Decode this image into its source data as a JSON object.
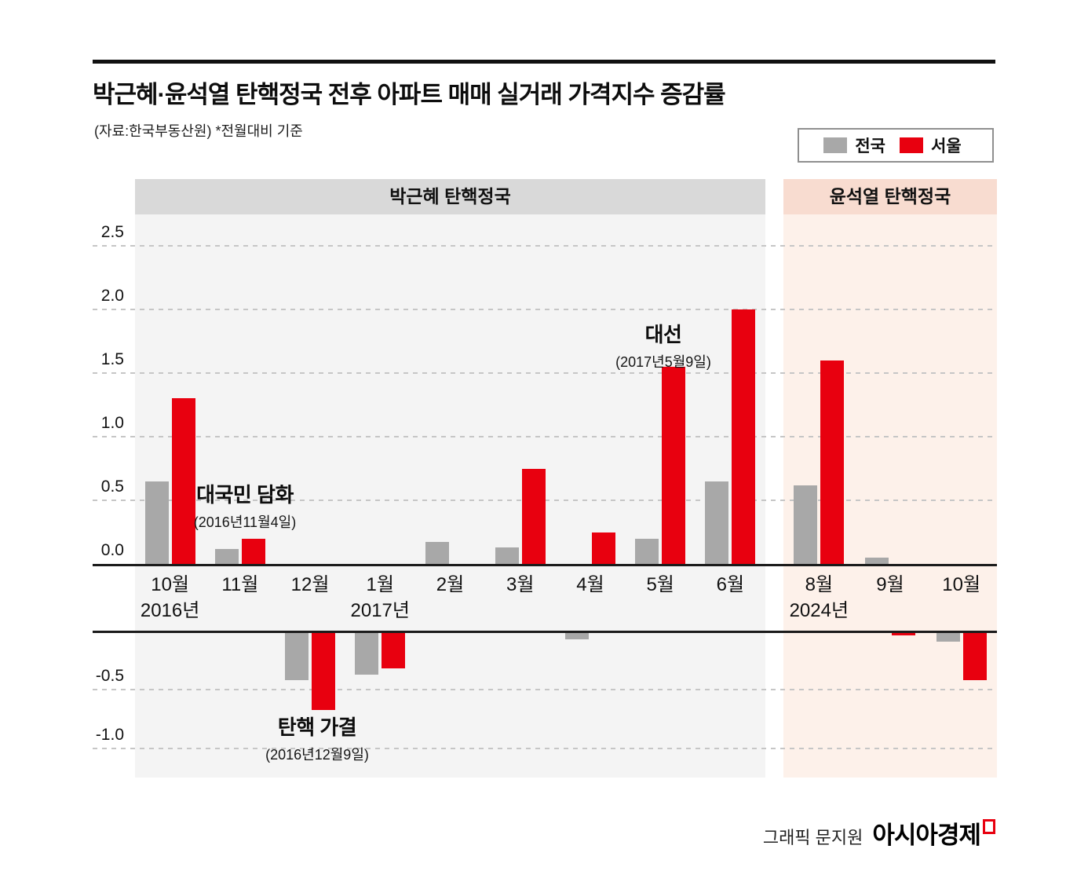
{
  "title": "박근혜·윤석열 탄핵정국 전후 아파트 매매 실거래 가격지수 증감률",
  "subtitle": "(자료:한국부동산원)  *전월대비 기준",
  "legend": {
    "national": "전국",
    "seoul": "서울"
  },
  "colors": {
    "national": "#a8a8a8",
    "seoul": "#e8000f"
  },
  "panels": [
    {
      "label": "박근혜 탄핵정국"
    },
    {
      "label": "윤석열 탄핵정국"
    }
  ],
  "chart_data": {
    "type": "bar",
    "categories": [
      "10월",
      "11월",
      "12월",
      "1월",
      "2월",
      "3월",
      "4월",
      "5월",
      "6월",
      "8월",
      "9월",
      "10월"
    ],
    "year_labels": {
      "0": "2016년",
      "3": "2017년",
      "9": "2024년"
    },
    "series": [
      {
        "name": "전국",
        "values": [
          0.65,
          0.12,
          -0.4,
          -0.35,
          0.17,
          0.13,
          -0.05,
          0.2,
          0.65,
          0.62,
          0.05,
          -0.07
        ]
      },
      {
        "name": "서울",
        "values": [
          1.3,
          0.2,
          -0.65,
          -0.3,
          0,
          0.75,
          0.25,
          1.55,
          2.0,
          1.6,
          -0.02,
          -0.4
        ]
      }
    ],
    "ylim": [
      -1.0,
      2.5
    ],
    "yticks": [
      2.5,
      2.0,
      1.5,
      1.0,
      0.5,
      0.0,
      -0.5,
      -1.0
    ],
    "grid": "dashed horizontal",
    "legend_position": "top-right",
    "annotations": [
      {
        "label": "대국민 담화",
        "sub": "(2016년11월4일)"
      },
      {
        "label": "탄핵 가결",
        "sub": "(2016년12월9일)"
      },
      {
        "label": "대선",
        "sub": "(2017년5월9일)"
      }
    ]
  },
  "footer": {
    "credit": "그래픽 문지원",
    "brand": "아시아경제"
  }
}
